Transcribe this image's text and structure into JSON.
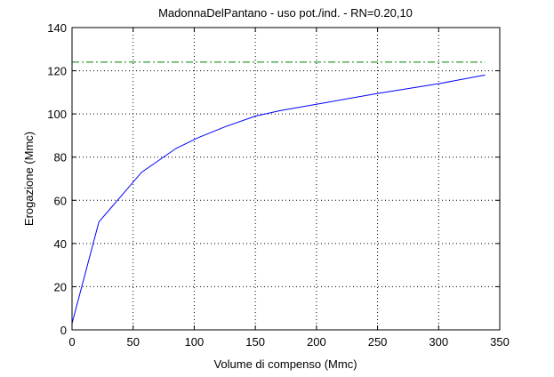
{
  "chart_data": {
    "type": "line",
    "title": "MadonnaDelPantano  -  uso pot./ind.  -   RN=0.20,10",
    "xlabel": "Volume di compenso (Mmc)",
    "ylabel": "Erogazione (Mmc)",
    "xlim": [
      0,
      350
    ],
    "ylim": [
      0,
      140
    ],
    "xticks": [
      0,
      50,
      100,
      150,
      200,
      250,
      300,
      350
    ],
    "yticks": [
      0,
      20,
      40,
      60,
      80,
      100,
      120,
      140
    ],
    "xtick_labels": [
      "0",
      "50",
      "100",
      "150",
      "200",
      "250",
      "300",
      "350"
    ],
    "ytick_labels": [
      "0",
      "20",
      "40",
      "60",
      "80",
      "100",
      "120",
      "140"
    ],
    "grid": true,
    "legend": "none",
    "series": [
      {
        "color": "#0000ff",
        "line_style": "solid",
        "x": [
          0,
          22,
          57,
          85,
          103,
          125,
          150,
          170,
          200,
          250,
          300,
          338
        ],
        "y": [
          3,
          50,
          73,
          84,
          89,
          94,
          99,
          101.5,
          104.5,
          109.5,
          114,
          118
        ]
      },
      {
        "color": "#008000",
        "line_style": "dash-dot",
        "x": [
          0,
          338
        ],
        "y": [
          124,
          124
        ]
      }
    ]
  }
}
